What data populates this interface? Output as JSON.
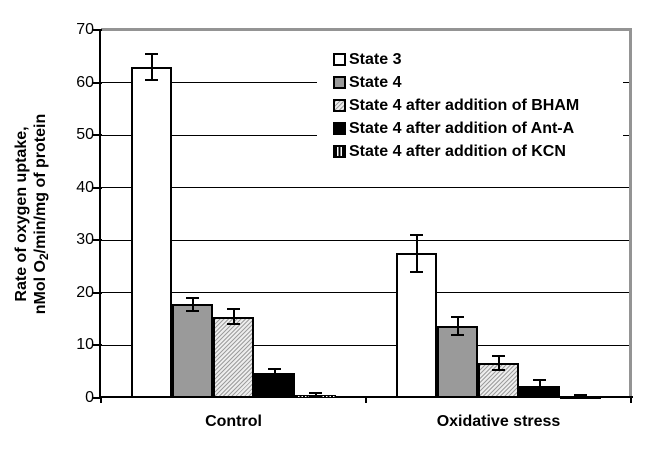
{
  "chart_data": {
    "type": "bar",
    "title": "",
    "ylabel": {
      "line1": "Rate of oxygen uptake,",
      "line2_pre": "nMol O",
      "line2_sub": "2",
      "line2_post": "/min/mg of protein"
    },
    "xlabel": "",
    "ylim": [
      0,
      70
    ],
    "yticks": [
      0,
      10,
      20,
      30,
      40,
      50,
      60,
      70
    ],
    "categories": [
      "Control",
      "Oxidative stress"
    ],
    "series": [
      {
        "name": "State 3",
        "pattern": "white",
        "values": [
          63.0,
          27.5
        ],
        "errors": [
          2.5,
          3.6
        ]
      },
      {
        "name": "State 4",
        "pattern": "gray",
        "values": [
          17.8,
          13.7
        ],
        "errors": [
          1.2,
          1.7
        ]
      },
      {
        "name": "State 4 after addition of BHAM",
        "pattern": "hatch",
        "values": [
          15.5,
          6.7
        ],
        "errors": [
          1.4,
          1.3
        ]
      },
      {
        "name": "State 4 after addition of Ant-A",
        "pattern": "black",
        "values": [
          4.7,
          2.3
        ],
        "errors": [
          0.8,
          1.1
        ]
      },
      {
        "name": "State 4 after addition of KCN",
        "pattern": "vstripes",
        "values": [
          0.6,
          0.25
        ],
        "errors": [
          0.35,
          0.25
        ]
      }
    ],
    "grid": true,
    "error_bars": true,
    "legend_position": "top-right-inside"
  },
  "colors": {
    "background": "#ffffff",
    "plot_border": "#949494",
    "axis": "#000000",
    "gridline": "#000000",
    "bar_gray": "#9a9a9a",
    "bar_hatch_light": "#ededed",
    "bar_black": "#000000",
    "bar_white": "#ffffff"
  }
}
